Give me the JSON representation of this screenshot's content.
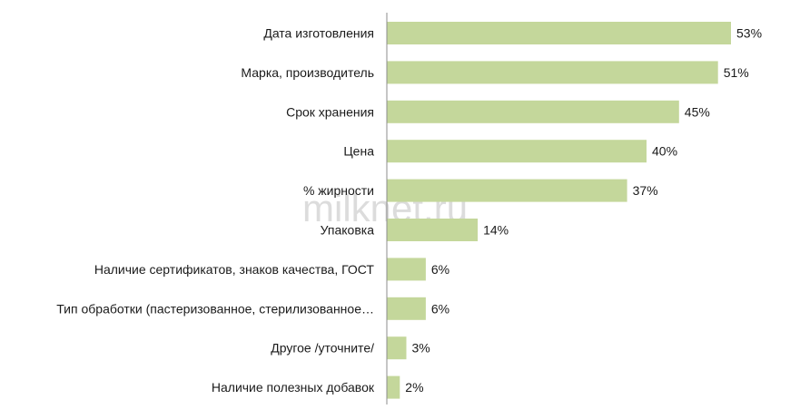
{
  "watermark": "milknet.ru",
  "chart_data": {
    "type": "bar",
    "orientation": "horizontal",
    "categories": [
      "Дата изготовления",
      "Марка, производитель",
      "Срок хранения",
      "Цена",
      "% жирности",
      "Упаковка",
      "Наличие сертификатов, знаков качества, ГОСТ",
      "Тип обработки (пастеризованное, стерилизованное…",
      "Другое /уточните/",
      "Наличие полезных добавок"
    ],
    "values": [
      53,
      51,
      45,
      40,
      37,
      14,
      6,
      6,
      3,
      2
    ],
    "value_labels": [
      "53%",
      "51%",
      "45%",
      "40%",
      "37%",
      "14%",
      "6%",
      "6%",
      "3%",
      "2%"
    ],
    "title": "",
    "xlabel": "",
    "ylabel": "",
    "xlim": [
      0,
      53
    ],
    "grid": false,
    "bar_color": "#c4d79b"
  }
}
